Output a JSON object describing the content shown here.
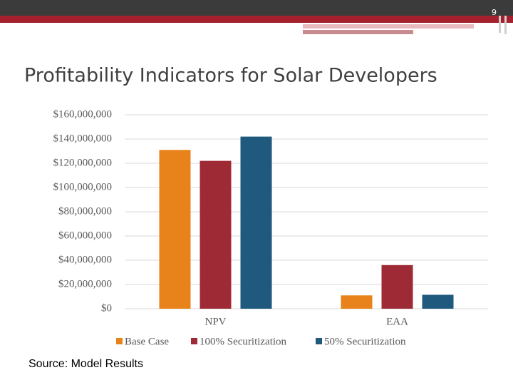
{
  "page_number": "9",
  "source": "Source: Model Results",
  "chart_data": {
    "type": "bar",
    "title": "Profitability Indicators for Solar Developers",
    "categories": [
      "NPV",
      "EAA"
    ],
    "series": [
      {
        "name": "Base Case",
        "color": "#e8821a",
        "values": [
          131000000,
          11000000
        ]
      },
      {
        "name": "100% Securitization",
        "color": "#9e2a36",
        "values": [
          122000000,
          36000000
        ]
      },
      {
        "name": "50% Securitization",
        "color": "#1f5a7e",
        "values": [
          142000000,
          11500000
        ]
      }
    ],
    "ylim": [
      0,
      160000000
    ],
    "yticks": [
      {
        "value": 0,
        "label": "$0"
      },
      {
        "value": 20000000,
        "label": "$20,000,000"
      },
      {
        "value": 40000000,
        "label": "$40,000,000"
      },
      {
        "value": 60000000,
        "label": "$60,000,000"
      },
      {
        "value": 80000000,
        "label": "$80,000,000"
      },
      {
        "value": 100000000,
        "label": "$100,000,000"
      },
      {
        "value": 120000000,
        "label": "$120,000,000"
      },
      {
        "value": 140000000,
        "label": "$140,000,000"
      },
      {
        "value": 160000000,
        "label": "$160,000,000"
      }
    ],
    "grid": true,
    "legend": "bottom"
  }
}
